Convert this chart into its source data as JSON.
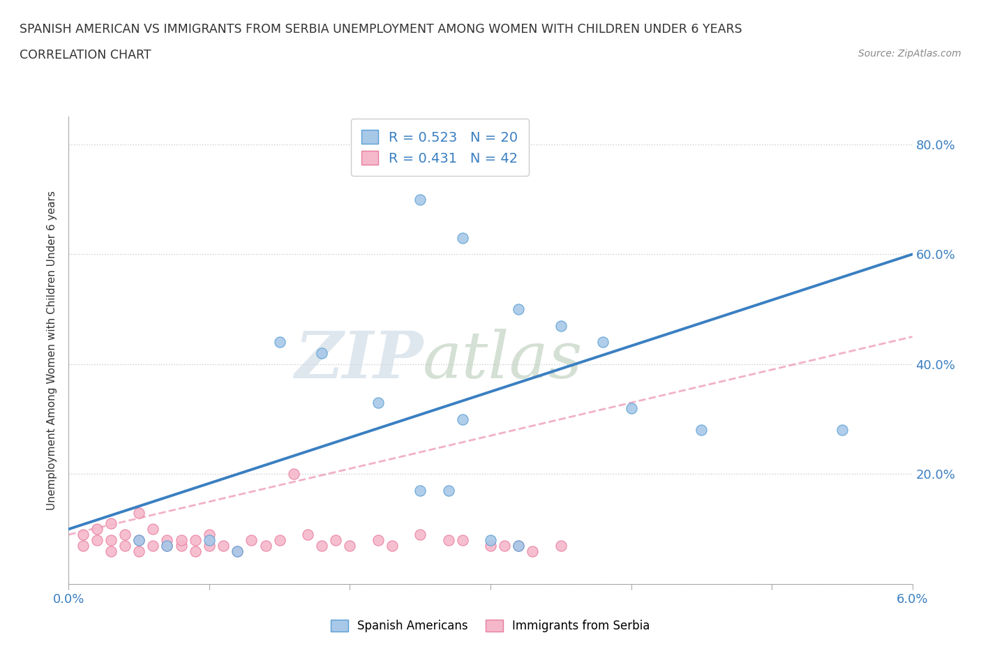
{
  "title": "SPANISH AMERICAN VS IMMIGRANTS FROM SERBIA UNEMPLOYMENT AMONG WOMEN WITH CHILDREN UNDER 6 YEARS",
  "subtitle": "CORRELATION CHART",
  "source": "Source: ZipAtlas.com",
  "ylabel_label": "Unemployment Among Women with Children Under 6 years",
  "xlim": [
    0.0,
    0.06
  ],
  "ylim": [
    0.0,
    0.85
  ],
  "xtick_positions": [
    0.0,
    0.01,
    0.02,
    0.03,
    0.04,
    0.05,
    0.06
  ],
  "xtick_labels": [
    "0.0%",
    "",
    "",
    "",
    "",
    "",
    "6.0%"
  ],
  "ytick_positions": [
    0.0,
    0.2,
    0.4,
    0.6,
    0.8
  ],
  "ytick_labels": [
    "",
    "20.0%",
    "40.0%",
    "60.0%",
    "80.0%"
  ],
  "blue_color": "#a8c8e8",
  "blue_edge_color": "#5a9fd4",
  "blue_line_color": "#3a7fc1",
  "pink_color": "#f5b8cb",
  "pink_edge_color": "#e87da0",
  "pink_line_color": "#e87da0",
  "legend_R_blue": "R = 0.523",
  "legend_N_blue": "N = 20",
  "legend_R_pink": "R = 0.431",
  "legend_N_pink": "N = 42",
  "watermark_zip": "ZIP",
  "watermark_atlas": "atlas",
  "blue_scatter_x": [
    0.025,
    0.028,
    0.032,
    0.035,
    0.038,
    0.015,
    0.018,
    0.022,
    0.028,
    0.04,
    0.045,
    0.055,
    0.005,
    0.007,
    0.01,
    0.012,
    0.025,
    0.027,
    0.03,
    0.032
  ],
  "blue_scatter_y": [
    0.7,
    0.63,
    0.5,
    0.47,
    0.44,
    0.44,
    0.42,
    0.33,
    0.3,
    0.32,
    0.28,
    0.28,
    0.08,
    0.07,
    0.08,
    0.06,
    0.17,
    0.17,
    0.08,
    0.07
  ],
  "pink_scatter_x": [
    0.001,
    0.001,
    0.002,
    0.002,
    0.003,
    0.003,
    0.003,
    0.004,
    0.004,
    0.005,
    0.005,
    0.005,
    0.006,
    0.006,
    0.007,
    0.007,
    0.008,
    0.008,
    0.009,
    0.009,
    0.01,
    0.01,
    0.011,
    0.012,
    0.013,
    0.014,
    0.015,
    0.016,
    0.017,
    0.018,
    0.019,
    0.02,
    0.022,
    0.023,
    0.025,
    0.027,
    0.028,
    0.03,
    0.031,
    0.032,
    0.033,
    0.035
  ],
  "pink_scatter_y": [
    0.07,
    0.09,
    0.08,
    0.1,
    0.06,
    0.08,
    0.11,
    0.07,
    0.09,
    0.06,
    0.08,
    0.13,
    0.07,
    0.1,
    0.07,
    0.08,
    0.07,
    0.08,
    0.06,
    0.08,
    0.07,
    0.09,
    0.07,
    0.06,
    0.08,
    0.07,
    0.08,
    0.2,
    0.09,
    0.07,
    0.08,
    0.07,
    0.08,
    0.07,
    0.09,
    0.08,
    0.08,
    0.07,
    0.07,
    0.07,
    0.06,
    0.07
  ],
  "background_color": "#ffffff",
  "grid_color": "#cccccc",
  "blue_line_x": [
    0.0,
    0.06
  ],
  "blue_line_y": [
    0.1,
    0.6
  ],
  "pink_line_x": [
    0.0,
    0.06
  ],
  "pink_line_y": [
    0.09,
    0.45
  ]
}
